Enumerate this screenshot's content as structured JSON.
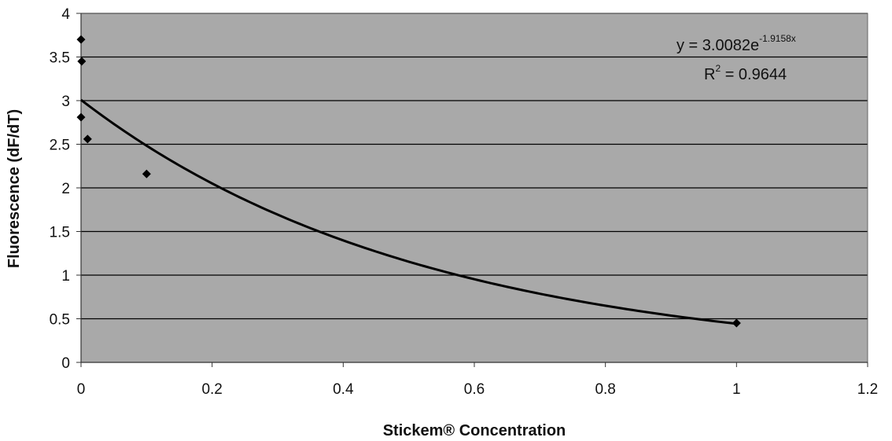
{
  "chart_data": {
    "type": "scatter",
    "xlabel": "Stickem® Concentration",
    "ylabel": "Fluorescence (dF/dT)",
    "xlim": [
      0,
      1.2
    ],
    "ylim": [
      0,
      4
    ],
    "x_ticks": [
      "0",
      "0.2",
      "0.4",
      "0.6",
      "0.8",
      "1",
      "1.2"
    ],
    "y_ticks": [
      "0",
      "0.5",
      "1",
      "1.5",
      "2",
      "2.5",
      "3",
      "3.5",
      "4"
    ],
    "grid": "horizontal",
    "background_color": "#a9a9a9",
    "series": [
      {
        "marker": "diamond",
        "color": "#000000",
        "points": [
          {
            "x": 0.0,
            "y": 3.7
          },
          {
            "x": 0.001,
            "y": 3.45
          },
          {
            "x": 0.0,
            "y": 2.81
          },
          {
            "x": 0.01,
            "y": 2.56
          },
          {
            "x": 0.1,
            "y": 2.16
          },
          {
            "x": 1.0,
            "y": 0.45
          }
        ]
      }
    ],
    "trendline": {
      "type": "exponential",
      "a": 3.0082,
      "b": -1.9158,
      "x_range": [
        0,
        1
      ],
      "color": "#000000"
    },
    "equation": {
      "prefix": "y = 3.0082e",
      "exponent": "-1.9158x",
      "r2_prefix": "R",
      "r2_sup": "2",
      "r2_suffix": " = 0.9644"
    }
  }
}
